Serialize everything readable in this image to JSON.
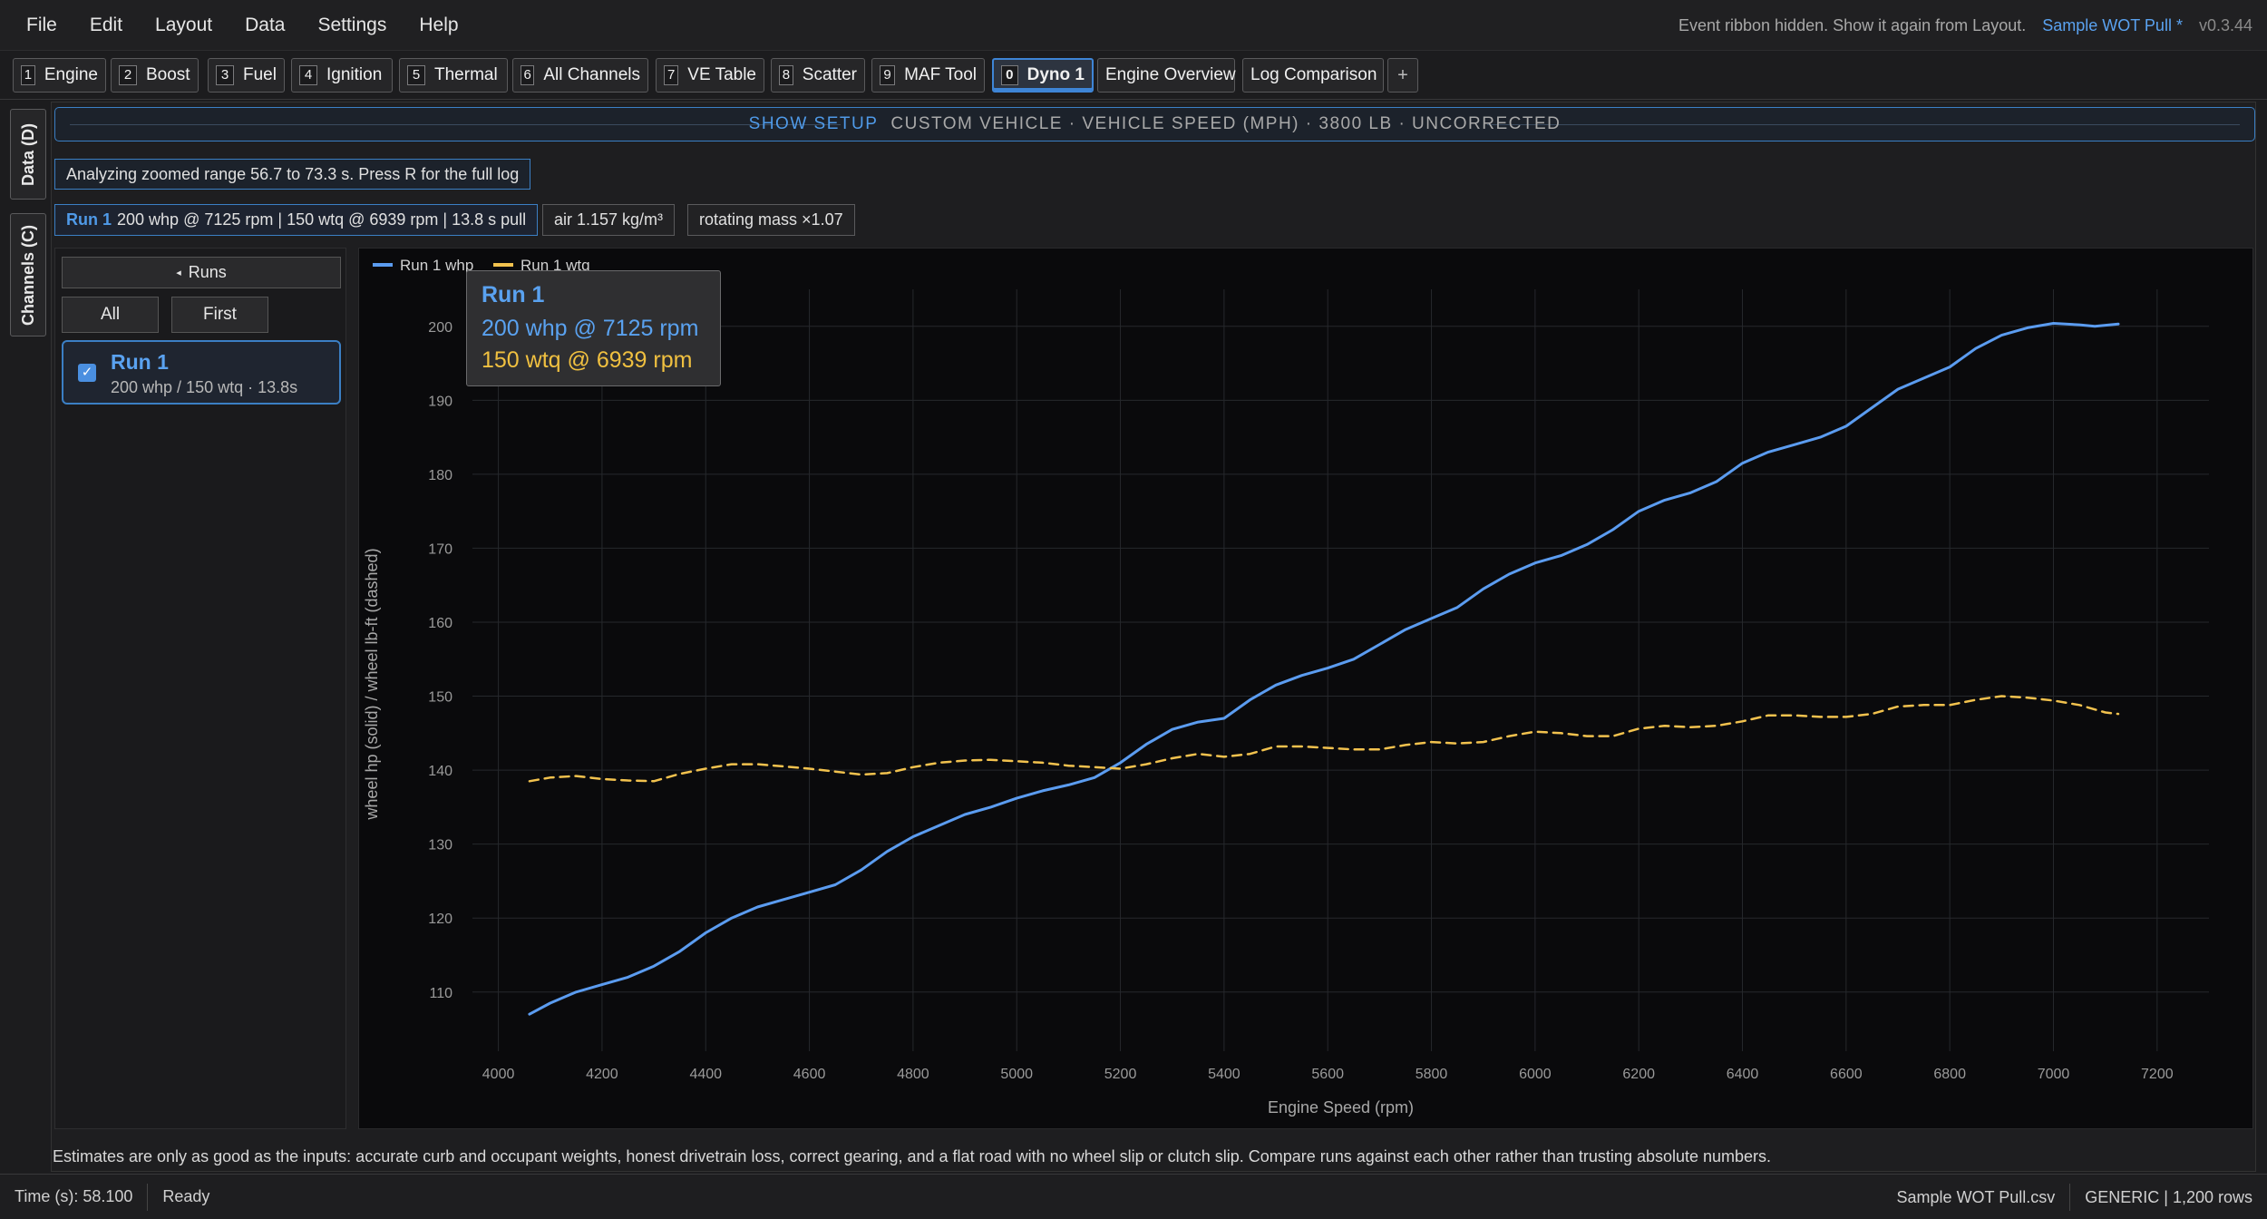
{
  "menu": {
    "items": [
      "File",
      "Edit",
      "Layout",
      "Data",
      "Settings",
      "Help"
    ],
    "ribbon_note": "Event ribbon hidden. Show it again from Layout.",
    "file_name": "Sample WOT Pull *",
    "version": "v0.3.44"
  },
  "tabs": [
    {
      "num": "1",
      "label": "Engine"
    },
    {
      "num": "2",
      "label": "Boost"
    },
    {
      "num": "3",
      "label": "Fuel"
    },
    {
      "num": "4",
      "label": "Ignition"
    },
    {
      "num": "5",
      "label": "Thermal"
    },
    {
      "num": "6",
      "label": "All Channels"
    },
    {
      "num": "7",
      "label": "VE Table"
    },
    {
      "num": "8",
      "label": "Scatter"
    },
    {
      "num": "9",
      "label": "MAF Tool"
    },
    {
      "num": "0",
      "label": "Dyno 1"
    },
    {
      "num": "",
      "label": "Engine Overview"
    },
    {
      "num": "",
      "label": "Log Comparison"
    }
  ],
  "add_tab_label": "+",
  "side_tabs": {
    "data": "Data (D)",
    "channels": "Channels (C)"
  },
  "setup": {
    "show_setup": "SHOW SETUP",
    "description": "CUSTOM VEHICLE · VEHICLE SPEED (MPH) · 3800 LB · UNCORRECTED"
  },
  "zoom_note": "Analyzing zoomed range 56.7 to 73.3 s. Press R for the full log",
  "chips": {
    "run_name": "Run 1",
    "run_summary": "200 whp @ 7125 rpm | 150 wtq @ 6939 rpm | 13.8 s pull",
    "air": "air 1.157 kg/m³",
    "rotating": "rotating mass ×1.07"
  },
  "runs_panel": {
    "toggle_label": "Runs",
    "all_label": "All",
    "first_label": "First",
    "run_title": "Run 1",
    "run_sub": "200 whp / 150 wtq · 13.8s"
  },
  "tooltip": {
    "title": "Run 1",
    "hp": "200 whp @ 7125 rpm",
    "tq": "150 wtq @ 6939 rpm"
  },
  "colors": {
    "hp": "#5b9cf0",
    "tq": "#f2c24e",
    "accent": "#3b7fc4"
  },
  "chart_data": {
    "type": "line",
    "xlabel": "Engine Speed (rpm)",
    "ylabel": "wheel hp (solid) / wheel lb-ft (dashed)",
    "xlim": [
      3950,
      7300
    ],
    "ylim": [
      102,
      205
    ],
    "xticks": [
      4000,
      4200,
      4400,
      4600,
      4800,
      5000,
      5200,
      5400,
      5600,
      5800,
      6000,
      6200,
      6400,
      6600,
      6800,
      7000,
      7200
    ],
    "yticks": [
      110,
      120,
      130,
      140,
      150,
      160,
      170,
      180,
      190,
      200
    ],
    "grid": true,
    "legend": "top-left",
    "series": [
      {
        "name": "Run 1 whp",
        "style": "solid",
        "x": [
          4060,
          4100,
          4150,
          4200,
          4250,
          4300,
          4350,
          4400,
          4450,
          4500,
          4550,
          4600,
          4650,
          4700,
          4750,
          4800,
          4850,
          4900,
          4950,
          5000,
          5050,
          5100,
          5150,
          5200,
          5250,
          5300,
          5350,
          5400,
          5450,
          5500,
          5550,
          5600,
          5650,
          5700,
          5750,
          5800,
          5850,
          5900,
          5950,
          6000,
          6050,
          6100,
          6150,
          6200,
          6250,
          6300,
          6350,
          6400,
          6450,
          6500,
          6550,
          6600,
          6650,
          6700,
          6750,
          6800,
          6850,
          6900,
          6950,
          7000,
          7050,
          7080,
          7125
        ],
        "values": [
          107,
          108.5,
          110,
          111,
          112,
          113.5,
          115.5,
          118,
          120,
          121.5,
          122.5,
          123.5,
          124.5,
          126.5,
          129,
          131,
          132.5,
          134,
          135,
          136.2,
          137.2,
          138,
          139,
          141,
          143.5,
          145.5,
          146.5,
          147,
          149.5,
          151.5,
          152.8,
          153.8,
          155,
          157,
          159,
          160.5,
          162,
          164.5,
          166.5,
          168,
          169,
          170.5,
          172.5,
          175,
          176.5,
          177.5,
          179,
          181.5,
          183,
          184,
          185,
          186.5,
          189,
          191.5,
          193,
          194.5,
          197,
          198.8,
          199.8,
          200.4,
          200.2,
          200,
          200.3
        ]
      },
      {
        "name": "Run 1 wtq",
        "style": "dashed",
        "x": [
          4060,
          4100,
          4150,
          4200,
          4250,
          4300,
          4350,
          4400,
          4450,
          4500,
          4550,
          4600,
          4650,
          4700,
          4750,
          4800,
          4850,
          4900,
          4950,
          5000,
          5050,
          5100,
          5150,
          5200,
          5250,
          5300,
          5350,
          5400,
          5450,
          5500,
          5550,
          5600,
          5650,
          5700,
          5750,
          5800,
          5850,
          5900,
          5950,
          6000,
          6050,
          6100,
          6150,
          6200,
          6250,
          6300,
          6350,
          6400,
          6450,
          6500,
          6550,
          6600,
          6650,
          6700,
          6750,
          6800,
          6850,
          6900,
          6950,
          7000,
          7050,
          7100,
          7125
        ],
        "values": [
          138.5,
          139,
          139.2,
          138.8,
          138.6,
          138.5,
          139.5,
          140.2,
          140.8,
          140.8,
          140.5,
          140.2,
          139.8,
          139.4,
          139.6,
          140.4,
          141,
          141.3,
          141.4,
          141.2,
          141,
          140.6,
          140.4,
          140.2,
          140.8,
          141.6,
          142.2,
          141.8,
          142.2,
          143.2,
          143.2,
          143,
          142.8,
          142.8,
          143.4,
          143.8,
          143.6,
          143.8,
          144.6,
          145.2,
          145,
          144.6,
          144.6,
          145.6,
          146,
          145.8,
          146,
          146.6,
          147.4,
          147.4,
          147.2,
          147.2,
          147.6,
          148.6,
          148.8,
          148.8,
          149.5,
          150,
          149.8,
          149.4,
          148.8,
          147.8,
          147.6
        ]
      }
    ]
  },
  "disclaimer": "Estimates are only as good as the inputs: accurate curb and occupant weights, honest drivetrain loss, correct gearing, and a flat road with no wheel slip or clutch slip. Compare runs against each other rather than trusting absolute numbers.",
  "status": {
    "time": "Time (s): 58.100",
    "ready": "Ready",
    "file": "Sample WOT Pull.csv",
    "info": "GENERIC | 1,200 rows"
  }
}
